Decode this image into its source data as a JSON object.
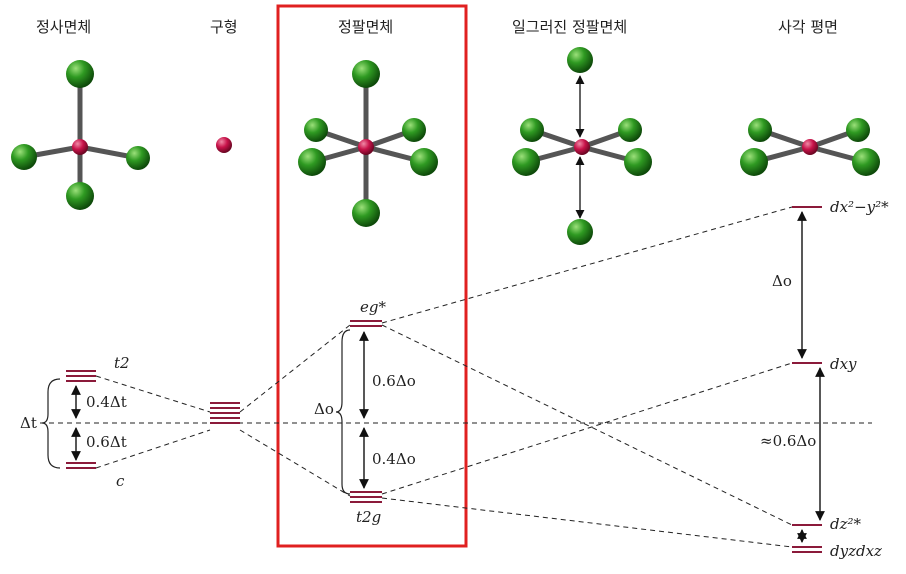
{
  "geometries": [
    {
      "label": "정사면체"
    },
    {
      "label": "구형"
    },
    {
      "label": "정팔면체"
    },
    {
      "label": "일그러진 정팔면체"
    },
    {
      "label": "사각 평면"
    }
  ],
  "highlight_color": "#e02020",
  "level_color": "#8b1a3a",
  "tetrahedral": {
    "upper": "t2",
    "lower": "c",
    "split": "Δt",
    "gap_upper": "0.4Δt",
    "gap_lower": "0.6Δt"
  },
  "octahedral": {
    "upper": "eg*",
    "lower": "t2g",
    "split": "Δo",
    "gap_upper": "0.6Δo",
    "gap_lower": "0.4Δo"
  },
  "square_planar": {
    "levels": [
      "dx²−y²*",
      "dxy",
      "dz²*",
      "dyzdxz"
    ],
    "split_top": "Δo",
    "split_mid": "≈0.6Δo"
  }
}
